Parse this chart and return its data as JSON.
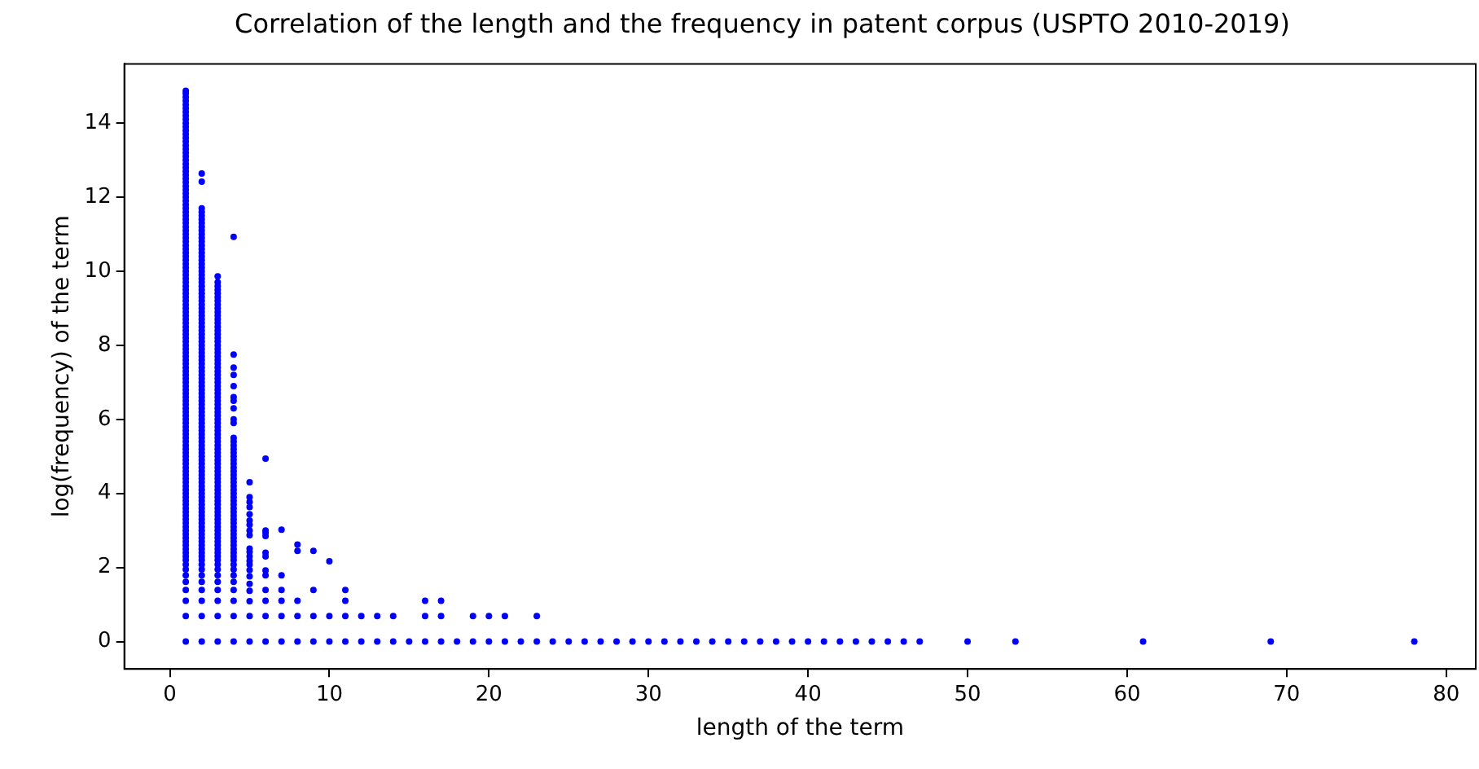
{
  "chart_data": {
    "type": "scatter",
    "title": "Correlation of the length and the frequency in patent corpus (USPTO 2010-2019)",
    "xlabel": "length of the term",
    "ylabel": "log(frequency) of the term",
    "xlim": [
      -2.85,
      81.85
    ],
    "ylim": [
      -0.74,
      15.6
    ],
    "xticks": [
      0,
      10,
      20,
      30,
      40,
      50,
      60,
      70,
      80
    ],
    "yticks": [
      0,
      2,
      4,
      6,
      8,
      10,
      12,
      14
    ],
    "grid": false,
    "legend": false,
    "marker": "circle",
    "series": [
      {
        "color": "#0000ff",
        "x": [
          1,
          1,
          1,
          1,
          1,
          1,
          1,
          1,
          1,
          1,
          1,
          1,
          1,
          1,
          1,
          1,
          1,
          1,
          1,
          1,
          1,
          1,
          1,
          1,
          1,
          1,
          1,
          1,
          1,
          1,
          1,
          1,
          1,
          1,
          1,
          1,
          1,
          1,
          1,
          1,
          1,
          1,
          1,
          1,
          1,
          1,
          1,
          1,
          1,
          1,
          1,
          1,
          1,
          1,
          1,
          1,
          1,
          1,
          1,
          1,
          1,
          1,
          1,
          1,
          1,
          1,
          1,
          1,
          1,
          1,
          1,
          1,
          1,
          1,
          1,
          1,
          1,
          1,
          1,
          1,
          1,
          1,
          1,
          1,
          1,
          1,
          1,
          1,
          1,
          1,
          1,
          1,
          1,
          1,
          1,
          1,
          1,
          1,
          1,
          1,
          1,
          1,
          1,
          1,
          1,
          1,
          1,
          1,
          1,
          1,
          1,
          1,
          1,
          1,
          1,
          1,
          1,
          1,
          1,
          1,
          1,
          1,
          1,
          1,
          1,
          1,
          1,
          1,
          1,
          1,
          1,
          1,
          1,
          1,
          1,
          1
        ],
        "values": [
          0,
          0.69,
          1.1,
          1.39,
          1.61,
          1.79,
          1.95,
          2.08,
          2.2,
          2.3,
          2.4,
          2.5,
          2.6,
          2.7,
          2.8,
          2.9,
          3.0,
          3.1,
          3.2,
          3.3,
          3.4,
          3.5,
          3.6,
          3.7,
          3.8,
          3.9,
          4.0,
          4.1,
          4.2,
          4.3,
          4.4,
          4.5,
          4.6,
          4.7,
          4.8,
          4.9,
          5.0,
          5.1,
          5.2,
          5.3,
          5.4,
          5.5,
          5.6,
          5.7,
          5.8,
          5.9,
          6.0,
          6.1,
          6.2,
          6.3,
          6.4,
          6.5,
          6.6,
          6.7,
          6.8,
          6.9,
          7.0,
          7.1,
          7.2,
          7.3,
          7.4,
          7.5,
          7.6,
          7.7,
          7.8,
          7.9,
          8.0,
          8.1,
          8.2,
          8.3,
          8.4,
          8.5,
          8.6,
          8.7,
          8.8,
          8.9,
          9.0,
          9.1,
          9.2,
          9.3,
          9.4,
          9.5,
          9.6,
          9.7,
          9.8,
          9.9,
          10.0,
          10.1,
          10.2,
          10.3,
          10.4,
          10.5,
          10.6,
          10.7,
          10.8,
          10.9,
          11.0,
          11.1,
          11.2,
          11.3,
          11.4,
          11.5,
          11.6,
          11.7,
          11.8,
          11.9,
          12.0,
          12.1,
          12.2,
          12.3,
          12.4,
          12.5,
          12.6,
          12.7,
          12.8,
          12.9,
          13.0,
          13.1,
          13.2,
          13.3,
          13.4,
          13.5,
          13.6,
          13.7,
          13.8,
          13.9,
          14.0,
          14.1,
          14.2,
          14.3,
          14.4,
          14.5,
          14.6,
          14.7,
          14.8,
          14.87
        ]
      },
      {
        "color": "#0000ff",
        "x": [
          2,
          2,
          2,
          2,
          2,
          2,
          2,
          2,
          2,
          2,
          2,
          2,
          2,
          2,
          2,
          2,
          2,
          2,
          2,
          2,
          2,
          2,
          2,
          2,
          2,
          2,
          2,
          2,
          2,
          2,
          2,
          2,
          2,
          2,
          2,
          2,
          2,
          2,
          2,
          2,
          2,
          2,
          2,
          2,
          2,
          2,
          2,
          2,
          2,
          2,
          2,
          2,
          2,
          2,
          2,
          2,
          2,
          2,
          2,
          2,
          2,
          2,
          2,
          2,
          2,
          2,
          2,
          2,
          2,
          2,
          2,
          2,
          2,
          2,
          2,
          2,
          2,
          2,
          2,
          2,
          2,
          2,
          2,
          2,
          2,
          2,
          2,
          2,
          2,
          2,
          2,
          2,
          2,
          2,
          2,
          2,
          2,
          2,
          2,
          2,
          2,
          2,
          2,
          2,
          2,
          2
        ],
        "values": [
          0,
          0.69,
          1.1,
          1.39,
          1.61,
          1.79,
          1.95,
          2.08,
          2.2,
          2.3,
          2.4,
          2.5,
          2.6,
          2.7,
          2.8,
          2.9,
          3.0,
          3.1,
          3.2,
          3.3,
          3.4,
          3.5,
          3.6,
          3.7,
          3.8,
          3.9,
          4.0,
          4.1,
          4.2,
          4.3,
          4.4,
          4.5,
          4.6,
          4.7,
          4.8,
          4.9,
          5.0,
          5.1,
          5.2,
          5.3,
          5.4,
          5.5,
          5.6,
          5.7,
          5.8,
          5.9,
          6.0,
          6.1,
          6.2,
          6.3,
          6.4,
          6.5,
          6.6,
          6.7,
          6.8,
          6.9,
          7.0,
          7.1,
          7.2,
          7.3,
          7.4,
          7.5,
          7.6,
          7.7,
          7.8,
          7.9,
          8.0,
          8.1,
          8.2,
          8.3,
          8.4,
          8.5,
          8.6,
          8.7,
          8.8,
          8.9,
          9.0,
          9.1,
          9.2,
          9.3,
          9.4,
          9.5,
          9.6,
          9.7,
          9.8,
          9.9,
          10.0,
          10.1,
          10.2,
          10.3,
          10.4,
          10.5,
          10.6,
          10.7,
          10.8,
          10.9,
          11.0,
          11.1,
          11.2,
          11.3,
          11.4,
          11.5,
          11.6,
          11.7,
          12.42,
          12.64
        ]
      },
      {
        "color": "#0000ff",
        "x": [
          3,
          3,
          3,
          3,
          3,
          3,
          3,
          3,
          3,
          3,
          3,
          3,
          3,
          3,
          3,
          3,
          3,
          3,
          3,
          3,
          3,
          3,
          3,
          3,
          3,
          3,
          3,
          3,
          3,
          3,
          3,
          3,
          3,
          3,
          3,
          3,
          3,
          3,
          3,
          3,
          3,
          3,
          3,
          3,
          3,
          3,
          3,
          3,
          3,
          3,
          3,
          3,
          3,
          3,
          3,
          3,
          3,
          3,
          3,
          3,
          3,
          3,
          3,
          3,
          3,
          3,
          3,
          3,
          3,
          3,
          3,
          3,
          3,
          3,
          3,
          3,
          3,
          3,
          3,
          3,
          3,
          3,
          3,
          3,
          3
        ],
        "values": [
          0,
          0.69,
          1.1,
          1.39,
          1.61,
          1.79,
          1.95,
          2.08,
          2.2,
          2.3,
          2.4,
          2.5,
          2.6,
          2.7,
          2.8,
          2.9,
          3.0,
          3.1,
          3.2,
          3.3,
          3.4,
          3.5,
          3.6,
          3.7,
          3.8,
          3.9,
          4.0,
          4.1,
          4.2,
          4.3,
          4.4,
          4.5,
          4.6,
          4.7,
          4.8,
          4.9,
          5.0,
          5.1,
          5.2,
          5.3,
          5.4,
          5.5,
          5.6,
          5.7,
          5.8,
          5.9,
          6.0,
          6.1,
          6.2,
          6.3,
          6.4,
          6.5,
          6.6,
          6.7,
          6.8,
          6.9,
          7.0,
          7.1,
          7.2,
          7.3,
          7.4,
          7.5,
          7.6,
          7.7,
          7.8,
          7.9,
          8.0,
          8.1,
          8.2,
          8.3,
          8.4,
          8.5,
          8.6,
          8.7,
          8.8,
          8.9,
          9.0,
          9.1,
          9.2,
          9.3,
          9.4,
          9.5,
          9.6,
          9.7,
          9.86
        ]
      },
      {
        "color": "#0000ff",
        "x": [
          4,
          4,
          4,
          4,
          4,
          4,
          4,
          4,
          4,
          4,
          4,
          4,
          4,
          4,
          4,
          4,
          4,
          4,
          4,
          4,
          4,
          4,
          4,
          4,
          4,
          4,
          4,
          4,
          4,
          4,
          4,
          4,
          4,
          4,
          4,
          4,
          4,
          4,
          4,
          4,
          4,
          4,
          4,
          4,
          4,
          4,
          4,
          4,
          4,
          4,
          4,
          4
        ],
        "values": [
          0,
          0.69,
          1.1,
          1.39,
          1.61,
          1.79,
          1.95,
          2.08,
          2.2,
          2.3,
          2.4,
          2.5,
          2.6,
          2.7,
          2.8,
          2.9,
          3.0,
          3.1,
          3.2,
          3.3,
          3.4,
          3.5,
          3.6,
          3.7,
          3.8,
          3.9,
          4.0,
          4.1,
          4.2,
          4.3,
          4.4,
          4.5,
          4.6,
          4.7,
          4.8,
          4.9,
          5.0,
          5.1,
          5.2,
          5.3,
          5.4,
          5.5,
          5.9,
          6.0,
          6.3,
          6.5,
          6.6,
          6.9,
          7.2,
          7.4,
          7.75,
          10.93
        ]
      },
      {
        "color": "#0000ff",
        "x": [
          5,
          5,
          5,
          5,
          5,
          5,
          5,
          5,
          5,
          5,
          5,
          5,
          5,
          5,
          5,
          5,
          5,
          5,
          5,
          5,
          5,
          6,
          6,
          6,
          6,
          6,
          6,
          6,
          6,
          6,
          6,
          6,
          6,
          7,
          7,
          7,
          7,
          7,
          7,
          8,
          8,
          8,
          8,
          8,
          9,
          9,
          9,
          9,
          10,
          10,
          10,
          11,
          11,
          11,
          11,
          12,
          12,
          13,
          13,
          14,
          14,
          15,
          16,
          16,
          16,
          17,
          17,
          17,
          18,
          19,
          19,
          20,
          20,
          21,
          21,
          22,
          23,
          23,
          24,
          25,
          26,
          27,
          28,
          29,
          30,
          31,
          32,
          33,
          34,
          35,
          36,
          37,
          38,
          39,
          40,
          41,
          42,
          43,
          44,
          45,
          46,
          47,
          50,
          53,
          61,
          69,
          78
        ],
        "values": [
          0,
          0.69,
          1.09,
          1.37,
          1.56,
          1.76,
          1.93,
          2.08,
          2.18,
          2.3,
          2.42,
          2.51,
          2.87,
          3.0,
          3.15,
          3.27,
          3.44,
          3.63,
          3.77,
          4.3,
          3.9,
          0,
          0.69,
          1.1,
          1.39,
          1.79,
          1.92,
          2.3,
          2.4,
          2.85,
          2.94,
          3.0,
          4.94,
          0,
          0.69,
          1.1,
          1.39,
          1.79,
          3.02,
          0,
          0.69,
          1.1,
          2.45,
          2.62,
          0,
          0.69,
          1.39,
          2.45,
          0,
          0.69,
          2.17,
          0,
          0.69,
          1.1,
          1.39,
          0,
          0.69,
          0,
          0.69,
          0,
          0.69,
          0,
          0,
          0.69,
          1.1,
          0,
          0.69,
          1.1,
          0,
          0,
          0.69,
          0,
          0.69,
          0,
          0.69,
          0,
          0,
          0.69,
          0,
          0,
          0,
          0,
          0,
          0,
          0,
          0,
          0,
          0,
          0,
          0,
          0,
          0,
          0,
          0,
          0,
          0,
          0,
          0,
          0,
          0,
          0,
          0,
          0,
          0,
          0,
          0,
          0
        ]
      }
    ]
  }
}
